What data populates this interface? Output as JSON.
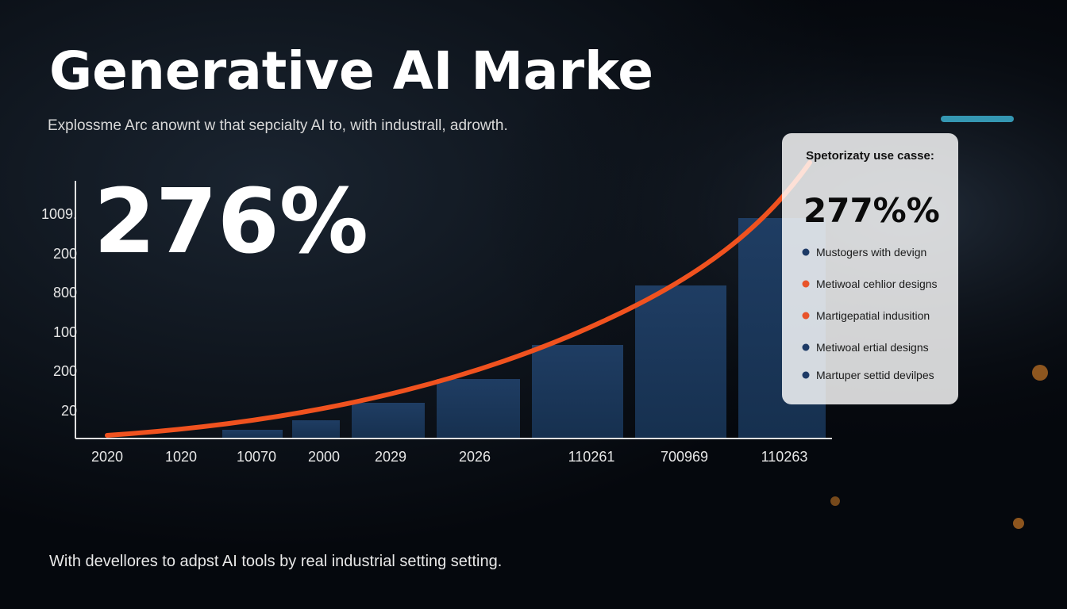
{
  "header": {
    "title": "Generative AI Marke",
    "subtitle": "Explossme Arc anownt w that sepcialty AI to, with industrall, adrowth."
  },
  "hero_stat": "276%",
  "y_axis_labels": [
    "1009.",
    "200",
    "800",
    "100",
    "200",
    "20"
  ],
  "x_axis_labels": [
    "2020",
    "1020",
    "10070",
    "2000",
    "2029",
    "2026",
    "110261",
    "700969",
    "110263"
  ],
  "panel": {
    "title": "Spetorizaty use casse:",
    "stat": "277%%",
    "items": [
      {
        "label": "Mustogers with devign",
        "color": "#1d3a66"
      },
      {
        "label": "Metiwoal cehlior designs",
        "color": "#e8532a"
      },
      {
        "label": "Martigepatial indusition",
        "color": "#e8532a"
      },
      {
        "label": "Metiwoal ertial designs",
        "color": "#1d3a66"
      },
      {
        "label": "Martuper settid devilpes",
        "color": "#1d3a66"
      }
    ]
  },
  "footer": "With devellores to adpst AI tools by real industrial setting setting."
}
